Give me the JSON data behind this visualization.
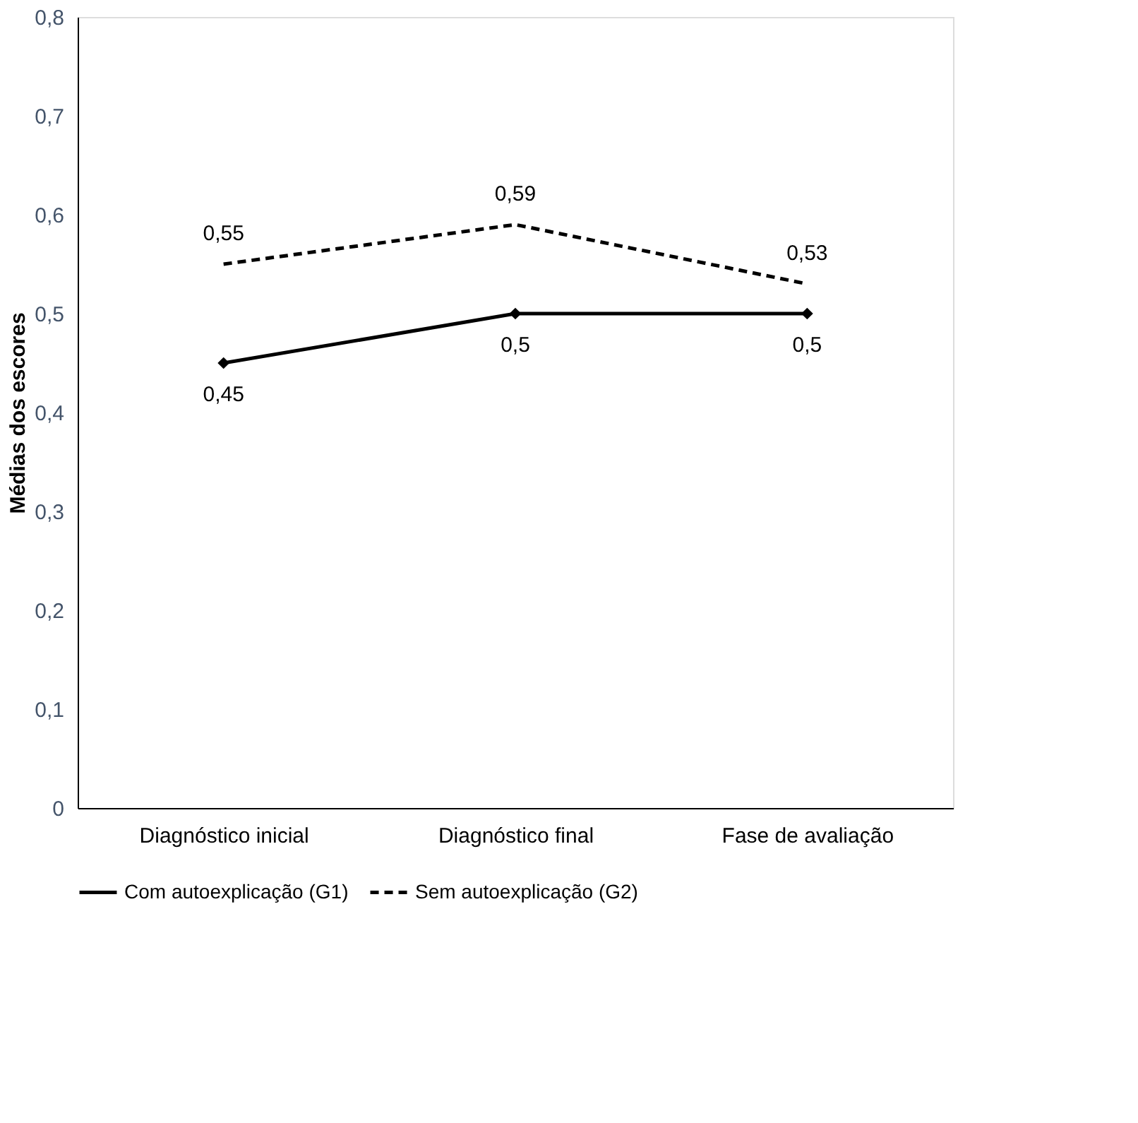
{
  "chart_data": {
    "type": "line",
    "ylabel": "Médias dos escores",
    "categories": [
      "Diagnóstico inicial",
      "Diagnóstico final",
      "Fase de avaliação"
    ],
    "series": [
      {
        "name": "Com autoexplicação (G1)",
        "color": "#000000",
        "values": [
          0.45,
          0.5,
          0.5
        ],
        "value_labels": [
          "0,45",
          "0,5",
          "0,5"
        ],
        "marker": "diamond",
        "line_style": "solid"
      },
      {
        "name": "Sem autoexplicação (G2)",
        "color": "#000000",
        "values": [
          0.55,
          0.59,
          0.53
        ],
        "value_labels": [
          "0,55",
          "0,59",
          "0,53"
        ],
        "marker": "none",
        "line_style": "dashed"
      }
    ],
    "ylim": [
      0,
      0.8
    ],
    "yticks": [
      {
        "value": 0,
        "label": "0"
      },
      {
        "value": 0.1,
        "label": "0,1"
      },
      {
        "value": 0.2,
        "label": "0,2"
      },
      {
        "value": 0.3,
        "label": "0,3"
      },
      {
        "value": 0.4,
        "label": "0,4"
      },
      {
        "value": 0.5,
        "label": "0,5"
      },
      {
        "value": 0.6,
        "label": "0,6"
      },
      {
        "value": 0.7,
        "label": "0,7"
      },
      {
        "value": 0.8,
        "label": "0,8"
      }
    ],
    "grid": false,
    "legend": "bottom"
  }
}
